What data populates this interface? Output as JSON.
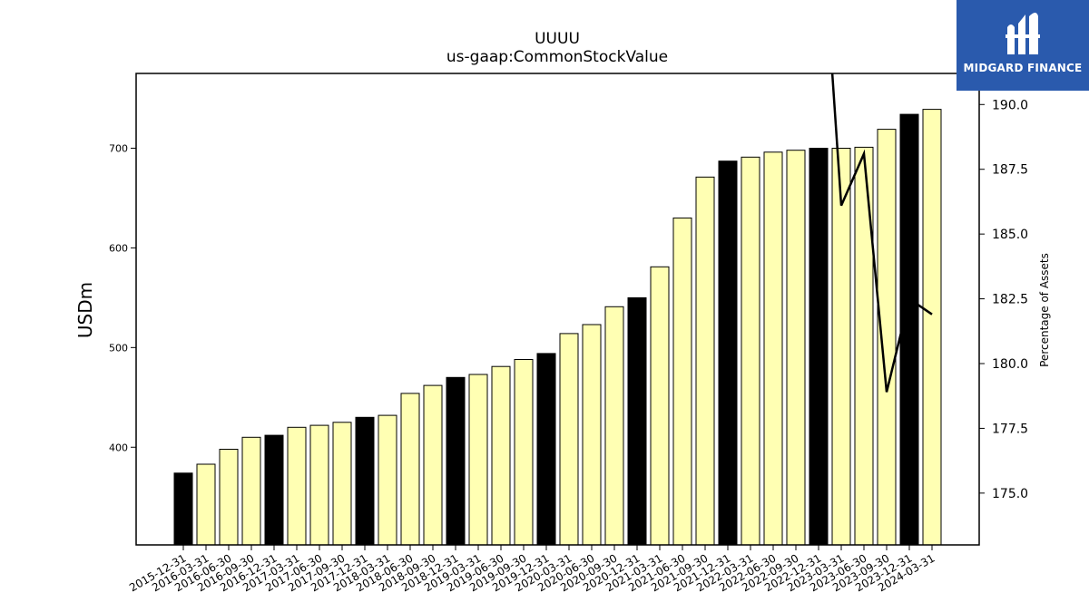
{
  "chart_data": {
    "type": "bar",
    "title": "UUUU",
    "subtitle": "us-gaap:CommonStockValue",
    "ylabel": "USDm",
    "y2label": "Percentage of Assets",
    "ylim": [
      302,
      775
    ],
    "y2lim": [
      173.0,
      191.2
    ],
    "yticks": [
      400,
      500,
      600,
      700
    ],
    "y2ticks": [
      "175.0",
      "177.5",
      "180.0",
      "182.5",
      "185.0",
      "187.5",
      "190.0"
    ],
    "categories": [
      "2015-12-31",
      "2016-03-31",
      "2016-06-30",
      "2016-09-30",
      "2016-12-31",
      "2017-03-31",
      "2017-06-30",
      "2017-09-30",
      "2017-12-31",
      "2018-03-31",
      "2018-06-30",
      "2018-09-30",
      "2018-12-31",
      "2019-03-31",
      "2019-06-30",
      "2019-09-30",
      "2019-12-31",
      "2020-03-31",
      "2020-06-30",
      "2020-09-30",
      "2020-12-31",
      "2021-03-31",
      "2021-06-30",
      "2021-09-30",
      "2021-12-31",
      "2022-03-31",
      "2022-06-30",
      "2022-09-30",
      "2022-12-31",
      "2023-03-31",
      "2023-06-30",
      "2023-09-30",
      "2023-12-31",
      "2024-03-31"
    ],
    "values": [
      374,
      383,
      398,
      410,
      412,
      420,
      422,
      425,
      430,
      432,
      454,
      462,
      470,
      473,
      481,
      488,
      494,
      514,
      523,
      541,
      550,
      581,
      630,
      671,
      687,
      691,
      696,
      698,
      700,
      700,
      701,
      719,
      734,
      739
    ],
    "bar_colors": [
      "#000000",
      "#ffffb3",
      "#ffffb3",
      "#ffffb3",
      "#000000",
      "#ffffb3",
      "#ffffb3",
      "#ffffb3",
      "#000000",
      "#ffffb3",
      "#ffffb3",
      "#ffffb3",
      "#000000",
      "#ffffb3",
      "#ffffb3",
      "#ffffb3",
      "#000000",
      "#ffffb3",
      "#ffffb3",
      "#ffffb3",
      "#000000",
      "#ffffb3",
      "#ffffb3",
      "#ffffb3",
      "#000000",
      "#ffffb3",
      "#ffffb3",
      "#ffffb3",
      "#000000",
      "#ffffb3",
      "#ffffb3",
      "#ffffb3",
      "#000000",
      "#ffffb3"
    ],
    "line_series": {
      "axis": "secondary",
      "points": [
        {
          "x": "2022-12-31",
          "y": 199.0
        },
        {
          "x": "2023-03-31",
          "y": 186.1
        },
        {
          "x": "2023-06-30",
          "y": 188.1
        },
        {
          "x": "2023-09-30",
          "y": 178.9
        },
        {
          "x": "2023-12-31",
          "y": 182.5
        },
        {
          "x": "2024-03-31",
          "y": 181.9
        }
      ]
    }
  },
  "logo": {
    "text": "MIDGARD FINANCE"
  }
}
